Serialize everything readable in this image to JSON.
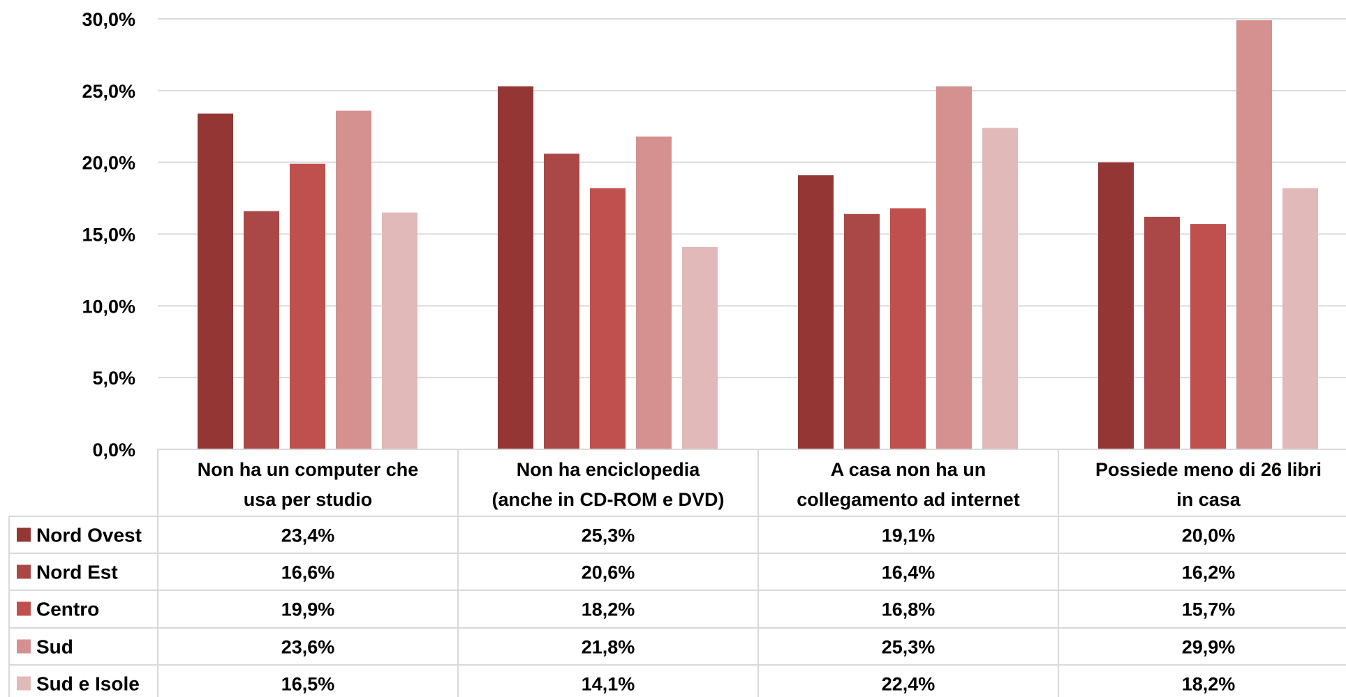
{
  "chart_data": {
    "type": "bar",
    "ylim": [
      0,
      30
    ],
    "yticks": [
      "0,0%",
      "5,0%",
      "10,0%",
      "15,0%",
      "20,0%",
      "25,0%",
      "30,0%"
    ],
    "categories": [
      [
        "Non ha un computer che",
        "usa per studio"
      ],
      [
        "Non ha enciclopedia",
        "(anche in CD-ROM e DVD)"
      ],
      [
        "A casa non ha un",
        "collegamento ad internet"
      ],
      [
        "Possiede meno di 26 libri",
        "in casa"
      ]
    ],
    "series": [
      {
        "name": "Nord Ovest",
        "color": "#943634",
        "values": [
          23.4,
          25.3,
          19.1,
          20.0
        ],
        "labels": [
          "23,4%",
          "25,3%",
          "19,1%",
          "20,0%"
        ]
      },
      {
        "name": "Nord Est",
        "color": "#a94846",
        "values": [
          16.6,
          20.6,
          16.4,
          16.2
        ],
        "labels": [
          "16,6%",
          "20,6%",
          "16,4%",
          "16,2%"
        ]
      },
      {
        "name": "Centro",
        "color": "#c0504d",
        "values": [
          19.9,
          18.2,
          16.8,
          15.7
        ],
        "labels": [
          "19,9%",
          "18,2%",
          "16,8%",
          "15,7%"
        ]
      },
      {
        "name": "Sud",
        "color": "#d49190",
        "values": [
          23.6,
          21.8,
          25.3,
          29.9
        ],
        "labels": [
          "23,6%",
          "21,8%",
          "25,3%",
          "29,9%"
        ]
      },
      {
        "name": "Sud e Isole",
        "color": "#e2b9b9",
        "values": [
          16.5,
          14.1,
          22.4,
          18.2
        ],
        "labels": [
          "16,5%",
          "14,1%",
          "22,4%",
          "18,2%"
        ]
      }
    ],
    "grid": true,
    "legend": "data-table"
  }
}
